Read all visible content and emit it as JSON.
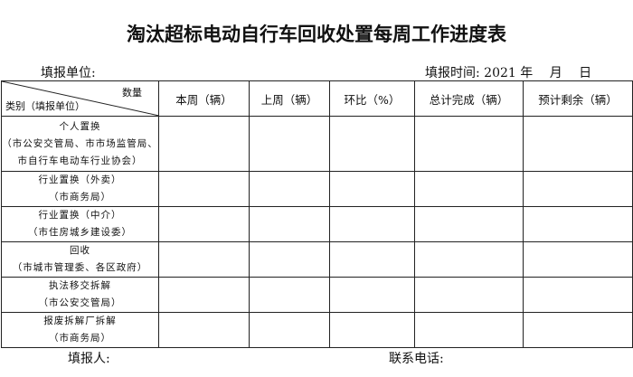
{
  "title": "淘汰超标电动自行车回收处置每周工作进度表",
  "unit_label": "填报单位:",
  "time_label": "填报时间: 2021 年　 月　 日",
  "corner": {
    "top": "数量",
    "bottom": "类别（填报单位）"
  },
  "columns": [
    "本周（辆）",
    "上周（辆）",
    "环比（%）",
    "总计完成（辆）",
    "预计剩余（辆）"
  ],
  "rows": [
    {
      "lines": [
        "个人置换",
        "（市公安交管局、市市场监管局、",
        "市自行车电动车行业协会）"
      ]
    },
    {
      "lines": [
        "行业置换（外卖）",
        "（市商务局）"
      ]
    },
    {
      "lines": [
        "行业置换（中介）",
        "（市住房城乡建设委）"
      ]
    },
    {
      "lines": [
        "回收",
        "（市城市管理委、各区政府）"
      ]
    },
    {
      "lines": [
        "执法移交拆解",
        "（市公安交管局）"
      ]
    },
    {
      "lines": [
        "报废拆解厂拆解",
        "（市商务局）"
      ]
    }
  ],
  "footer": {
    "reporter": "填报人:",
    "phone": "联系电话:"
  }
}
